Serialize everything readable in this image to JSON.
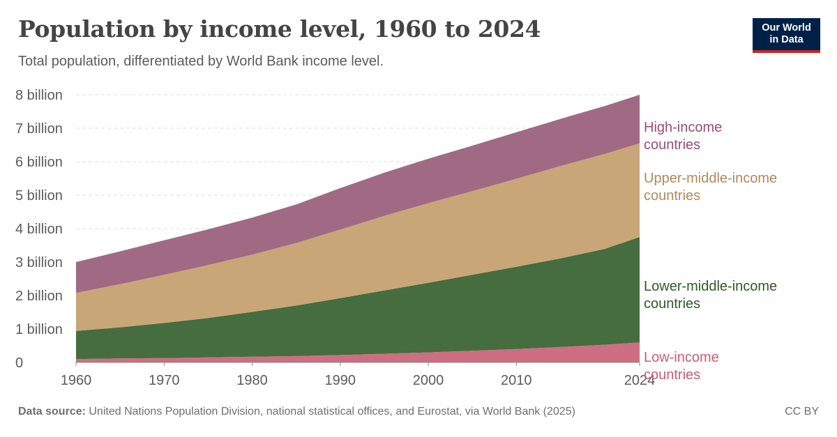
{
  "header": {
    "title": "Population by income level, 1960 to 2024",
    "subtitle": "Total population, differentiated by World Bank income level."
  },
  "logo": {
    "line1": "Our World",
    "line2": "in Data"
  },
  "footer": {
    "source_label": "Data source:",
    "source_text": "United Nations Population Division, national statistical offices, and Eurostat, via World Bank (2025)",
    "license": "CC BY"
  },
  "chart_data": {
    "type": "area",
    "stacked": true,
    "title": "Population by income level, 1960 to 2024",
    "xlabel": "",
    "ylabel": "",
    "xlim": [
      1960,
      2024
    ],
    "ylim": [
      0,
      8
    ],
    "y_unit": "billion",
    "y_ticks": [
      0,
      1,
      2,
      3,
      4,
      5,
      6,
      7,
      8
    ],
    "y_tick_labels": [
      "0",
      "1 billion",
      "2 billion",
      "3 billion",
      "4 billion",
      "5 billion",
      "6 billion",
      "7 billion",
      "8 billion"
    ],
    "x_ticks": [
      1960,
      1970,
      1980,
      1990,
      2000,
      2010,
      2024
    ],
    "x_tick_labels": [
      "1960",
      "1970",
      "1980",
      "1990",
      "2000",
      "2010",
      "2024"
    ],
    "grid": "horizontal dashed",
    "legend": "right, inline labels",
    "x": [
      1960,
      1965,
      1970,
      1975,
      1980,
      1985,
      1990,
      1995,
      2000,
      2005,
      2010,
      2015,
      2020,
      2024
    ],
    "series": [
      {
        "name": "Low-income countries",
        "color": "#cd6e82",
        "values": [
          0.1,
          0.12,
          0.13,
          0.15,
          0.17,
          0.19,
          0.22,
          0.26,
          0.3,
          0.35,
          0.4,
          0.46,
          0.53,
          0.6
        ]
      },
      {
        "name": "Lower-middle-income countries",
        "color": "#456d3f",
        "values": [
          0.84,
          0.93,
          1.05,
          1.18,
          1.34,
          1.51,
          1.7,
          1.89,
          2.08,
          2.27,
          2.46,
          2.65,
          2.86,
          3.15
        ]
      },
      {
        "name": "Upper-middle-income countries",
        "color": "#c9a677",
        "values": [
          1.14,
          1.29,
          1.44,
          1.58,
          1.71,
          1.87,
          2.05,
          2.23,
          2.38,
          2.5,
          2.63,
          2.76,
          2.84,
          2.8
        ]
      },
      {
        "name": "High-income countries",
        "color": "#a06a84",
        "values": [
          0.92,
          0.98,
          1.03,
          1.07,
          1.11,
          1.15,
          1.24,
          1.29,
          1.33,
          1.36,
          1.39,
          1.41,
          1.43,
          1.45
        ]
      }
    ],
    "series_labels": [
      [
        "High-income",
        "countries"
      ],
      [
        "Upper-middle-income",
        "countries"
      ],
      [
        "Lower-middle-income",
        "countries"
      ],
      [
        "Low-income",
        "countries"
      ]
    ],
    "label_colors": [
      "#9b4d73",
      "#b08a5a",
      "#2f5a25",
      "#cd5a74"
    ]
  }
}
